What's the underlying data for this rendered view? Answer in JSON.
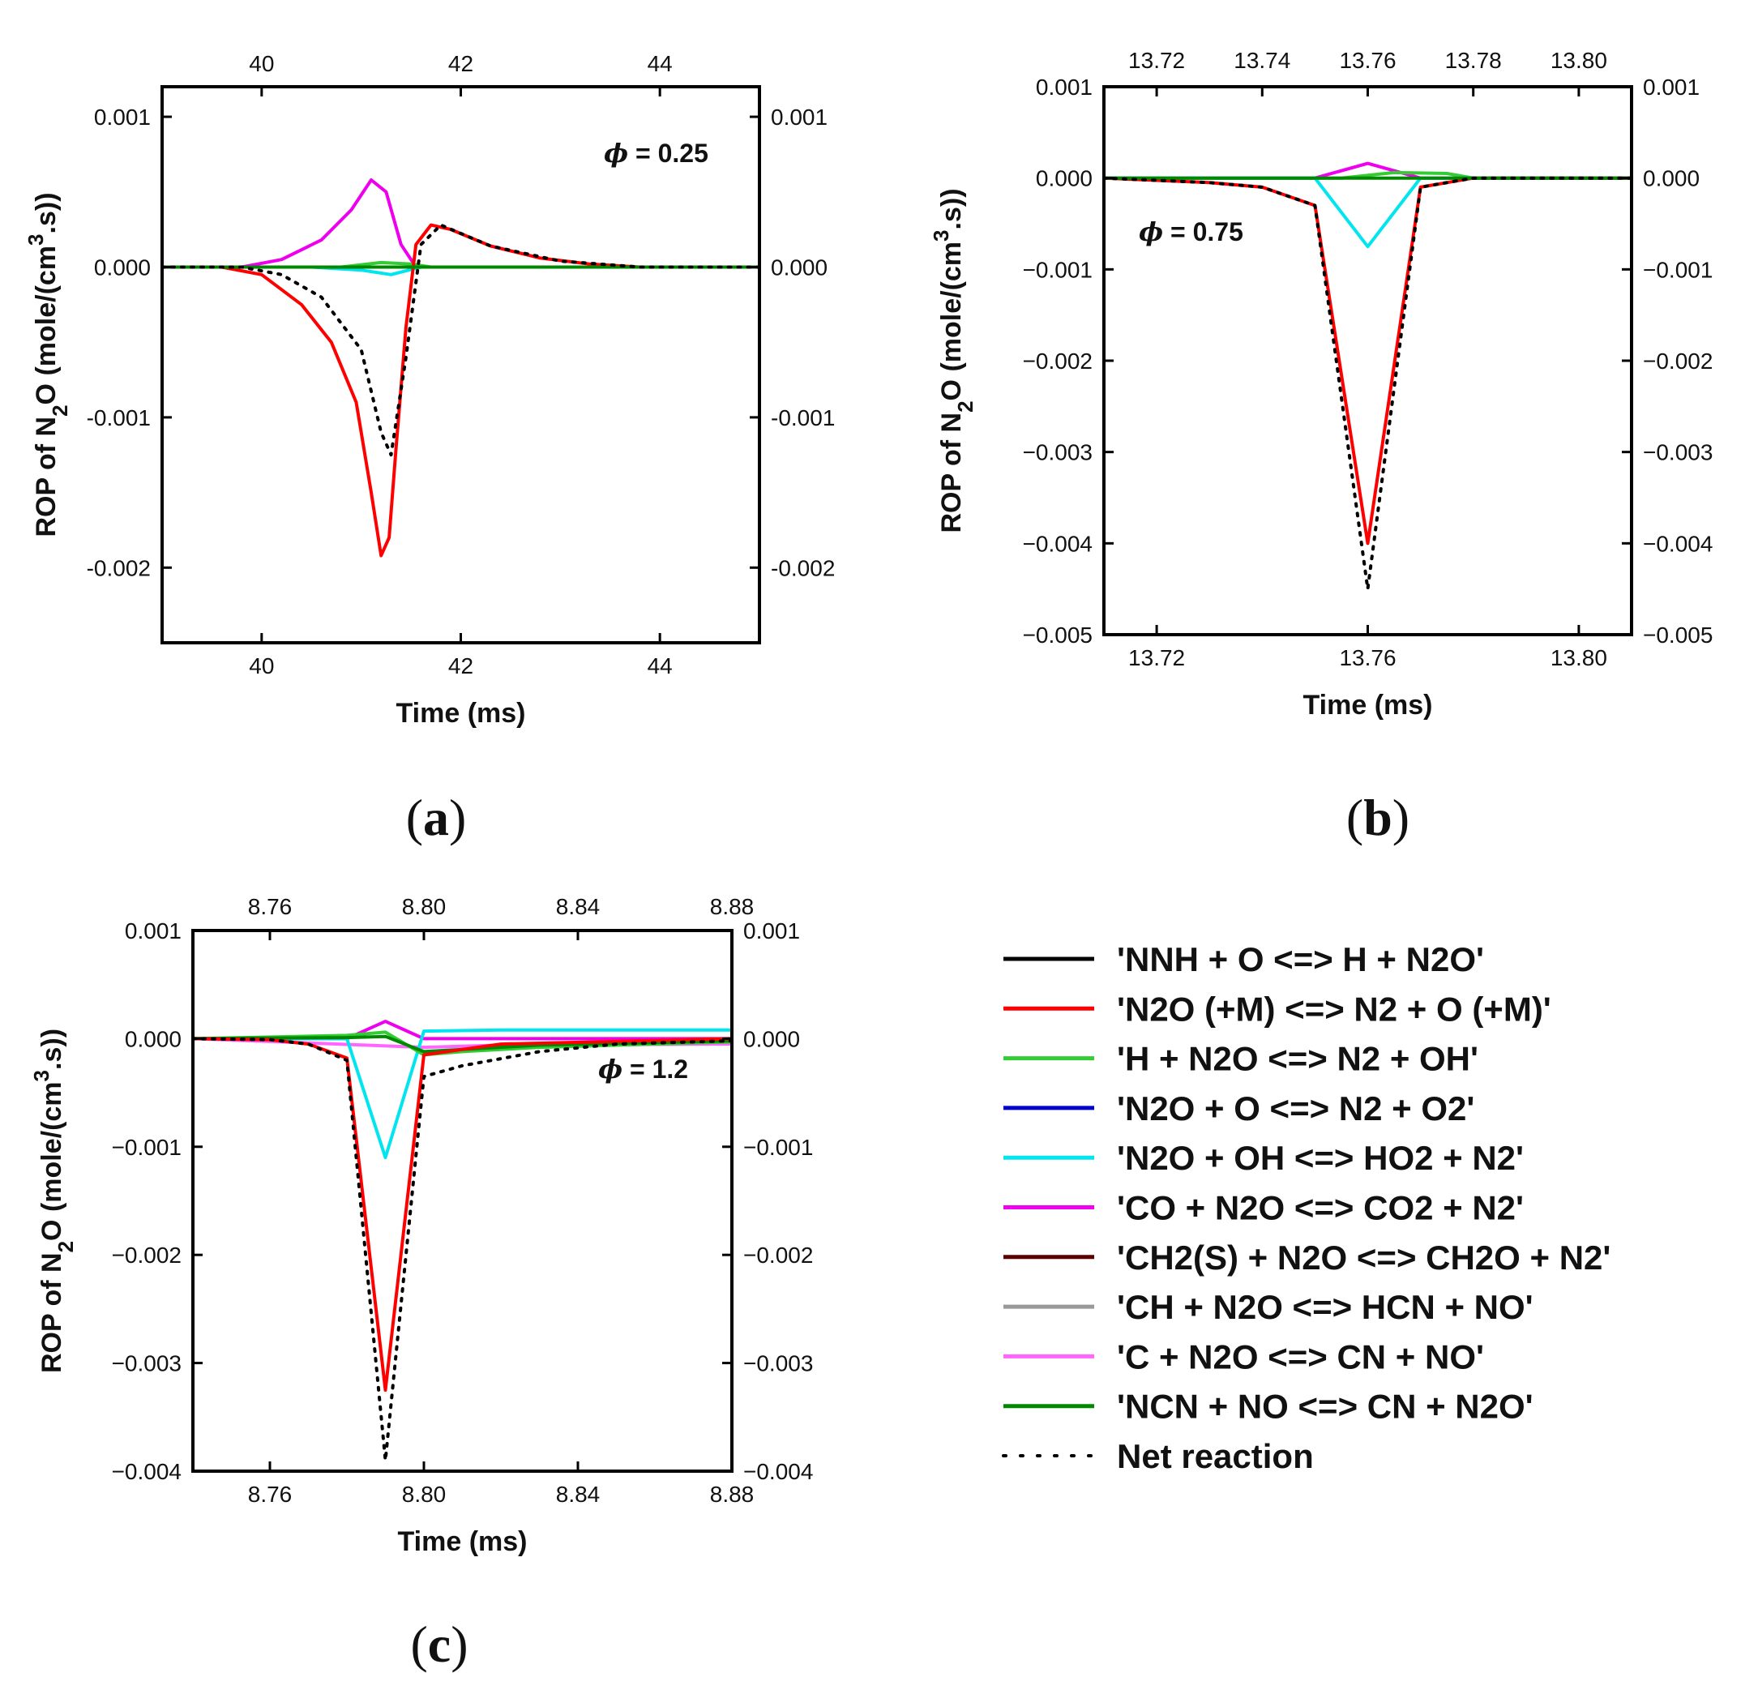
{
  "colors": {
    "r1": "#000000",
    "r2": "#ff0000",
    "r3": "#33cc33",
    "r4": "#0000cc",
    "r5": "#00e5ee",
    "r6": "#ee00ee",
    "r7": "#5a0000",
    "r8": "#999999",
    "r9": "#ff66ff",
    "r10": "#008800",
    "net": "#000000"
  },
  "legend": [
    {
      "key": "r1",
      "label": "'NNH + O <=> H + N2O'"
    },
    {
      "key": "r2",
      "label": "'N2O (+M) <=> N2 + O (+M)'"
    },
    {
      "key": "r3",
      "label": "'H + N2O <=> N2 + OH'"
    },
    {
      "key": "r4",
      "label": "'N2O + O <=> N2 + O2'"
    },
    {
      "key": "r5",
      "label": "'N2O + OH <=> HO2 + N2'"
    },
    {
      "key": "r6",
      "label": "'CO + N2O <=> CO2 + N2'"
    },
    {
      "key": "r7",
      "label": "'CH2(S) + N2O <=> CH2O + N2'"
    },
    {
      "key": "r8",
      "label": "'CH + N2O <=> HCN + NO'"
    },
    {
      "key": "r9",
      "label": "'C + N2O <=> CN + NO'"
    },
    {
      "key": "r10",
      "label": "'NCN + NO <=> CN + N2O'"
    },
    {
      "key": "net",
      "label": "Net reaction"
    }
  ],
  "chart_data": [
    {
      "type": "line",
      "panel": "(a)",
      "annotation": {
        "symbol": "ϕ",
        "text": " = 0.25"
      },
      "xlabel": "Time (ms)",
      "ylabel_parts": [
        "ROP of N",
        "2",
        "O (mole/(cm",
        "3",
        ".s))"
      ],
      "xlim": [
        39,
        45
      ],
      "ylim": [
        -0.0025,
        0.0012
      ],
      "xticks": [
        40,
        42,
        44
      ],
      "xtick_labels": [
        "40",
        "42",
        "44"
      ],
      "yticks": [
        0.001,
        0,
        -0.001,
        -0.002
      ],
      "ytick_labels": [
        "0.001",
        "0.000",
        "-0.001",
        "-0.002"
      ],
      "series": [
        {
          "key": "r6",
          "x": [
            39,
            39.8,
            40.2,
            40.6,
            40.9,
            41.1,
            41.25,
            41.4,
            41.55,
            41.8,
            45
          ],
          "y": [
            0,
            0,
            5e-05,
            0.00018,
            0.00038,
            0.00058,
            0.0005,
            0.00015,
            0,
            0,
            0
          ]
        },
        {
          "key": "r5",
          "x": [
            39,
            40.5,
            41,
            41.3,
            41.6,
            45
          ],
          "y": [
            0,
            0,
            -2e-05,
            -5e-05,
            0,
            0
          ]
        },
        {
          "key": "r3",
          "x": [
            39,
            40.8,
            41.2,
            41.5,
            41.7,
            45
          ],
          "y": [
            0,
            0,
            3e-05,
            2e-05,
            0,
            0
          ]
        },
        {
          "key": "r2",
          "x": [
            39,
            39.6,
            40,
            40.4,
            40.7,
            40.95,
            41.1,
            41.2,
            41.28,
            41.35,
            41.45,
            41.55,
            41.7,
            41.9,
            42.3,
            42.8,
            43.3,
            43.8,
            45
          ],
          "y": [
            0,
            0,
            -5e-05,
            -0.00025,
            -0.0005,
            -0.0009,
            -0.0015,
            -0.00192,
            -0.0018,
            -0.0012,
            -0.0004,
            0.00015,
            0.00028,
            0.00025,
            0.00014,
            6e-05,
            2e-05,
            0,
            0
          ]
        },
        {
          "key": "r10",
          "x": [
            39,
            45
          ],
          "y": [
            0,
            0
          ]
        },
        {
          "key": "net",
          "x": [
            39,
            39.8,
            40.2,
            40.6,
            41,
            41.2,
            41.3,
            41.45,
            41.6,
            41.8,
            42.3,
            43,
            43.8,
            45
          ],
          "y": [
            0,
            0,
            -5e-05,
            -0.0002,
            -0.00055,
            -0.0011,
            -0.00125,
            -0.0006,
            0.00015,
            0.00028,
            0.00014,
            4e-05,
            0,
            0
          ]
        }
      ]
    },
    {
      "type": "line",
      "panel": "(b)",
      "annotation": {
        "symbol": "ϕ",
        "text": " = 0.75"
      },
      "xlabel": "Time (ms)",
      "ylabel_parts": [
        "ROP of N",
        "2",
        "O (mole/(cm",
        "3",
        ".s))"
      ],
      "xlim": [
        13.71,
        13.81
      ],
      "ylim": [
        -0.005,
        0.001
      ],
      "xticks": [
        13.72,
        13.74,
        13.76,
        13.78,
        13.8
      ],
      "xtick_labels": [
        "13.72",
        "13.74",
        "13.76",
        "13.78",
        "13.80"
      ],
      "xticks_bottom": [
        13.72,
        13.76,
        13.8
      ],
      "xtick_labels_bottom": [
        "13.72",
        "13.76",
        "13.80"
      ],
      "yticks": [
        0.001,
        0,
        -0.001,
        -0.002,
        -0.003,
        -0.004,
        -0.005
      ],
      "ytick_labels": [
        "0.001",
        "0.000",
        "−0.001",
        "−0.002",
        "−0.003",
        "−0.004",
        "−0.005"
      ],
      "series": [
        {
          "key": "r6",
          "x": [
            13.71,
            13.75,
            13.76,
            13.77,
            13.81
          ],
          "y": [
            0,
            0,
            0.00016,
            0,
            0
          ]
        },
        {
          "key": "r3",
          "x": [
            13.71,
            13.755,
            13.765,
            13.775,
            13.78,
            13.81
          ],
          "y": [
            0,
            0,
            6e-05,
            5e-05,
            0,
            0
          ]
        },
        {
          "key": "r5",
          "x": [
            13.71,
            13.75,
            13.76,
            13.77,
            13.81
          ],
          "y": [
            0,
            0,
            -0.00075,
            0,
            0
          ]
        },
        {
          "key": "r2",
          "x": [
            13.71,
            13.73,
            13.74,
            13.75,
            13.76,
            13.77,
            13.78,
            13.81
          ],
          "y": [
            0,
            -5e-05,
            -0.0001,
            -0.0003,
            -0.004,
            -0.0001,
            0,
            0
          ]
        },
        {
          "key": "r10",
          "x": [
            13.71,
            13.81
          ],
          "y": [
            0,
            0
          ]
        },
        {
          "key": "net",
          "x": [
            13.71,
            13.73,
            13.74,
            13.75,
            13.76,
            13.77,
            13.78,
            13.81
          ],
          "y": [
            0,
            -5e-05,
            -0.0001,
            -0.0003,
            -0.0045,
            -0.0001,
            0,
            0
          ]
        }
      ]
    },
    {
      "type": "line",
      "panel": "(c)",
      "annotation": {
        "symbol": "ϕ",
        "text": " = 1.2"
      },
      "xlabel": "Time (ms)",
      "ylabel_parts": [
        "ROP of N",
        "2",
        "O (mole/(cm",
        "3",
        ".s))"
      ],
      "xlim": [
        8.74,
        8.88
      ],
      "ylim": [
        -0.004,
        0.001
      ],
      "xticks": [
        8.76,
        8.8,
        8.84,
        8.88
      ],
      "xtick_labels": [
        "8.76",
        "8.80",
        "8.84",
        "8.88"
      ],
      "yticks": [
        0.001,
        0,
        -0.001,
        -0.002,
        -0.003,
        -0.004
      ],
      "ytick_labels": [
        "0.001",
        "0.000",
        "−0.001",
        "−0.002",
        "−0.003",
        "−0.004"
      ],
      "series": [
        {
          "key": "r6",
          "x": [
            8.74,
            8.78,
            8.79,
            8.8,
            8.88
          ],
          "y": [
            0,
            0,
            0.00016,
            0,
            0
          ]
        },
        {
          "key": "r9",
          "x": [
            8.74,
            8.8,
            8.82,
            8.88
          ],
          "y": [
            0,
            -8e-05,
            -6e-05,
            -5e-05
          ]
        },
        {
          "key": "r5",
          "x": [
            8.74,
            8.78,
            8.79,
            8.8,
            8.82,
            8.88
          ],
          "y": [
            0,
            0,
            -0.0011,
            7e-05,
            8e-05,
            8e-05
          ]
        },
        {
          "key": "r3",
          "x": [
            8.74,
            8.78,
            8.79,
            8.8,
            8.81,
            8.83,
            8.88
          ],
          "y": [
            0,
            3e-05,
            6e-05,
            -0.00015,
            -0.00012,
            -8e-05,
            -3e-05
          ]
        },
        {
          "key": "r10",
          "x": [
            8.74,
            8.78,
            8.79,
            8.8,
            8.81,
            8.83,
            8.88
          ],
          "y": [
            0,
            1e-05,
            2e-05,
            -0.00012,
            -0.0001,
            -6e-05,
            -2e-05
          ]
        },
        {
          "key": "r2",
          "x": [
            8.74,
            8.76,
            8.77,
            8.78,
            8.79,
            8.8,
            8.81,
            8.82,
            8.88
          ],
          "y": [
            0,
            -1e-05,
            -5e-05,
            -0.00018,
            -0.00325,
            -0.00015,
            -0.0001,
            -5e-05,
            0
          ]
        },
        {
          "key": "net",
          "x": [
            8.74,
            8.76,
            8.77,
            8.78,
            8.79,
            8.8,
            8.81,
            8.83,
            8.85,
            8.88
          ],
          "y": [
            0,
            -1e-05,
            -5e-05,
            -0.0002,
            -0.0039,
            -0.00035,
            -0.00025,
            -0.00012,
            -5e-05,
            -2e-05
          ]
        }
      ]
    }
  ]
}
